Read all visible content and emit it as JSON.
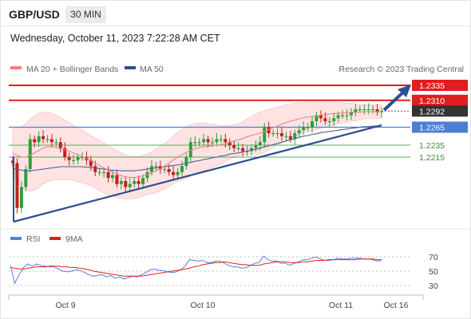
{
  "header": {
    "symbol": "GBP/USD",
    "timeframe": "30 MIN"
  },
  "timestamp": "Wednesday, October 11, 2023 7:22:28 AM CET",
  "copyright": "Research © 2023 Trading Central",
  "colors": {
    "resistance": "#e01e1e",
    "pivot": "#4a7fd4",
    "support": "#5aab5a",
    "current": "#333333",
    "candle_up": "#2e9e3a",
    "candle_down": "#c02020",
    "trendline": "#2c4f8f",
    "bollinger_fill": "#ffd9d9",
    "ma20": "#f08080",
    "ma50": "#4a5e9a",
    "rsi": "#5b7fe0",
    "rsi_ma": "#e02020"
  },
  "chart_data": [
    {
      "type": "candlestick",
      "legend": [
        "MA 20 + Bollinger Bands",
        "MA 50"
      ],
      "ylim": [
        1.2115,
        1.2345
      ],
      "x_ticks": [
        "Oct 9",
        "Oct 10",
        "Oct 11",
        "Oct 16"
      ],
      "levels": [
        {
          "label": "1.2335",
          "value": 1.2335,
          "kind": "resistance"
        },
        {
          "label": "1.2310",
          "value": 1.231,
          "kind": "resistance"
        },
        {
          "label": "1.2292",
          "value": 1.2292,
          "kind": "current"
        },
        {
          "label": "1.2265",
          "value": 1.2265,
          "kind": "pivot"
        },
        {
          "label": "1.2235",
          "value": 1.2235,
          "kind": "support"
        },
        {
          "label": "1.2215",
          "value": 1.2215,
          "kind": "support"
        }
      ],
      "close": [
        1.2205,
        1.213,
        1.2165,
        1.2195,
        1.2245,
        1.224,
        1.225,
        1.2245,
        1.2245,
        1.224,
        1.224,
        1.223,
        1.2215,
        1.221,
        1.221,
        1.2215,
        1.2215,
        1.221,
        1.22,
        1.219,
        1.219,
        1.219,
        1.218,
        1.2185,
        1.217,
        1.2175,
        1.2165,
        1.217,
        1.2175,
        1.217,
        1.218,
        1.219,
        1.22,
        1.22,
        1.2195,
        1.2195,
        1.219,
        1.2185,
        1.219,
        1.22,
        1.2215,
        1.224,
        1.224,
        1.224,
        1.2245,
        1.224,
        1.224,
        1.2245,
        1.2245,
        1.224,
        1.2235,
        1.223,
        1.223,
        1.2225,
        1.2225,
        1.223,
        1.2235,
        1.224,
        1.2265,
        1.2255,
        1.2255,
        1.2255,
        1.225,
        1.225,
        1.2245,
        1.2255,
        1.226,
        1.2265,
        1.2265,
        1.2275,
        1.2285,
        1.228,
        1.2275,
        1.2275,
        1.228,
        1.2285,
        1.2285,
        1.2285,
        1.229,
        1.2295,
        1.2295,
        1.2295,
        1.2295,
        1.2295,
        1.229,
        1.2292
      ],
      "ma20": [
        1.2222,
        1.2218,
        1.2215,
        1.2215,
        1.2218,
        1.2222,
        1.2226,
        1.223,
        1.2232,
        1.2232,
        1.2231,
        1.2229,
        1.2227,
        1.2225,
        1.2222,
        1.2219,
        1.2216,
        1.2213,
        1.2209,
        1.2205,
        1.2201,
        1.2197,
        1.2193,
        1.219,
        1.2187,
        1.2184,
        1.2182,
        1.2181,
        1.2181,
        1.2182,
        1.2184,
        1.2186,
        1.2189,
        1.2192,
        1.2196,
        1.22,
        1.2205,
        1.221,
        1.2215,
        1.2219,
        1.2223,
        1.2226,
        1.2229,
        1.2231,
        1.2232,
        1.2233,
        1.2234,
        1.2235,
        1.2236,
        1.2238,
        1.224,
        1.2242,
        1.2244,
        1.2246,
        1.2249,
        1.2251,
        1.2253,
        1.2255,
        1.2258,
        1.2261,
        1.2264,
        1.2267,
        1.227,
        1.2273,
        1.2275,
        1.2277,
        1.2279,
        1.2281,
        1.2282,
        1.2283,
        1.2284,
        1.2285,
        1.2286,
        1.2287,
        1.2288,
        1.2288,
        1.2289,
        1.2289,
        1.229,
        1.229,
        1.229,
        1.2291,
        1.2291,
        1.2291,
        1.2291,
        1.2291
      ],
      "bb_width": [
        0.004,
        0.0045,
        0.005,
        0.0056,
        0.006,
        0.0062,
        0.0062,
        0.006,
        0.0058,
        0.0056,
        0.0054,
        0.0052,
        0.005,
        0.0048,
        0.0046,
        0.0045,
        0.0044,
        0.0043,
        0.0042,
        0.0042,
        0.0042,
        0.0042,
        0.0041,
        0.004,
        0.0039,
        0.0038,
        0.0037,
        0.0036,
        0.0035,
        0.0034,
        0.0034,
        0.0034,
        0.0035,
        0.0036,
        0.0037,
        0.0038,
        0.0039,
        0.004,
        0.0041,
        0.0042,
        0.0043,
        0.0043,
        0.0042,
        0.0041,
        0.004,
        0.0038,
        0.0036,
        0.0034,
        0.0032,
        0.003,
        0.0028,
        0.0027,
        0.0027,
        0.0028,
        0.003,
        0.0032,
        0.0034,
        0.0035,
        0.0035,
        0.0034,
        0.0033,
        0.0032,
        0.0031,
        0.003,
        0.0029,
        0.0028,
        0.0027,
        0.0026,
        0.0025,
        0.0024,
        0.0023,
        0.0022,
        0.0021,
        0.002,
        0.0019,
        0.0018,
        0.0017,
        0.0016,
        0.0015,
        0.0014,
        0.0013,
        0.0012,
        0.0012,
        0.0011,
        0.0011,
        0.0011
      ],
      "ma50": [
        1.2196,
        1.2195,
        1.2193,
        1.2192,
        1.2192,
        1.2193,
        1.2194,
        1.2195,
        1.2196,
        1.2197,
        1.2198,
        1.2199,
        1.2199,
        1.2199,
        1.2199,
        1.2199,
        1.2199,
        1.2198,
        1.2198,
        1.2197,
        1.2196,
        1.2195,
        1.2194,
        1.2193,
        1.2193,
        1.2192,
        1.2192,
        1.2192,
        1.2192,
        1.2193,
        1.2194,
        1.2195,
        1.2196,
        1.2197,
        1.2198,
        1.2199,
        1.22,
        1.2201,
        1.2202,
        1.2203,
        1.2205,
        1.2206,
        1.2208,
        1.2209,
        1.2211,
        1.2212,
        1.2214,
        1.2215,
        1.2217,
        1.2218,
        1.222,
        1.2221,
        1.2222,
        1.2224,
        1.2225,
        1.2227,
        1.2228,
        1.223,
        1.2232,
        1.2234,
        1.2236,
        1.2238,
        1.224,
        1.2242,
        1.2244,
        1.2246,
        1.2248,
        1.225,
        1.2251,
        1.2253,
        1.2254,
        1.2256,
        1.2257,
        1.2258,
        1.2259,
        1.226,
        1.2261,
        1.2262,
        1.2263,
        1.2264,
        1.2265,
        1.2266,
        1.2266,
        1.2267,
        1.2267,
        1.2268
      ]
    },
    {
      "type": "line",
      "legend": [
        "RSI",
        "9MA"
      ],
      "ylim": [
        20,
        80
      ],
      "y_ticks": [
        "70",
        "50",
        "30"
      ],
      "series": [
        {
          "name": "RSI",
          "values": [
            58,
            33,
            45,
            55,
            60,
            57,
            60,
            58,
            57,
            56,
            56,
            53,
            50,
            49,
            50,
            52,
            51,
            48,
            45,
            43,
            44,
            45,
            42,
            44,
            40,
            42,
            39,
            41,
            43,
            42,
            45,
            48,
            52,
            53,
            51,
            51,
            49,
            48,
            49,
            52,
            57,
            66,
            65,
            64,
            65,
            62,
            62,
            64,
            64,
            61,
            58,
            56,
            56,
            54,
            55,
            58,
            61,
            62,
            71,
            66,
            64,
            64,
            61,
            61,
            58,
            61,
            63,
            66,
            66,
            68,
            70,
            67,
            65,
            65,
            66,
            68,
            67,
            67,
            68,
            68,
            68,
            67,
            67,
            66,
            64,
            65
          ]
        },
        {
          "name": "9MA",
          "values": [
            55,
            54,
            53,
            53,
            54,
            55,
            56,
            56,
            56,
            57,
            57,
            57,
            56,
            56,
            55,
            55,
            54,
            53,
            52,
            50,
            49,
            48,
            47,
            46,
            45,
            44,
            43,
            43,
            43,
            43,
            43,
            44,
            45,
            46,
            47,
            48,
            49,
            50,
            51,
            52,
            53,
            54,
            56,
            57,
            59,
            60,
            61,
            62,
            62,
            63,
            62,
            61,
            60,
            59,
            59,
            58,
            58,
            58,
            60,
            61,
            62,
            63,
            63,
            63,
            62,
            62,
            62,
            63,
            63,
            64,
            65,
            65,
            65,
            66,
            66,
            66,
            66,
            66,
            66,
            66,
            67,
            67,
            67,
            67,
            66,
            66
          ]
        }
      ]
    }
  ]
}
